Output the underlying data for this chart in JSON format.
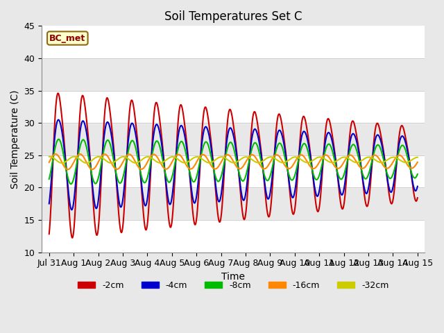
{
  "title": "Soil Temperatures Set C",
  "xlabel": "Time",
  "ylabel": "Soil Temperature (C)",
  "ylim": [
    10,
    45
  ],
  "annotation": "BC_met",
  "series": {
    "-2cm": {
      "color": "#cc0000",
      "amp_start": 14.0,
      "amp_end": 7.0,
      "mean": 24.0,
      "phase": 0.0,
      "skew": 0.6
    },
    "-4cm": {
      "color": "#0000cc",
      "amp_start": 8.5,
      "amp_end": 5.0,
      "mean": 24.0,
      "phase": 0.25,
      "skew": 0.35
    },
    "-8cm": {
      "color": "#00bb00",
      "amp_start": 3.5,
      "amp_end": 2.5,
      "mean": 24.0,
      "phase": 0.7,
      "skew": 0.0
    },
    "-16cm": {
      "color": "#ff8800",
      "amp_start": 1.2,
      "amp_end": 1.0,
      "mean": 24.0,
      "phase": 1.5,
      "skew": 0.0
    },
    "-32cm": {
      "color": "#cccc00",
      "amp_start": 0.5,
      "amp_end": 0.4,
      "mean": 24.3,
      "phase": 3.0,
      "skew": 0.0
    }
  },
  "xtick_labels": [
    "Jul 31",
    "Aug 1",
    "Aug 2",
    "Aug 3",
    "Aug 4",
    "Aug 5",
    "Aug 6",
    "Aug 7",
    "Aug 8",
    "Aug 9",
    "Aug 10",
    "Aug 11",
    "Aug 12",
    "Aug 13",
    "Aug 14",
    "Aug 15"
  ],
  "xtick_positions": [
    0,
    1,
    2,
    3,
    4,
    5,
    6,
    7,
    8,
    9,
    10,
    11,
    12,
    13,
    14,
    15
  ],
  "legend_entries": [
    "-2cm",
    "-4cm",
    "-8cm",
    "-16cm",
    "-32cm"
  ],
  "legend_colors": [
    "#cc0000",
    "#0000cc",
    "#00bb00",
    "#ff8800",
    "#cccc00"
  ],
  "bg_color": "#e8e8e8",
  "plot_bg_color": "#e8e8e8",
  "linewidth": 1.5
}
